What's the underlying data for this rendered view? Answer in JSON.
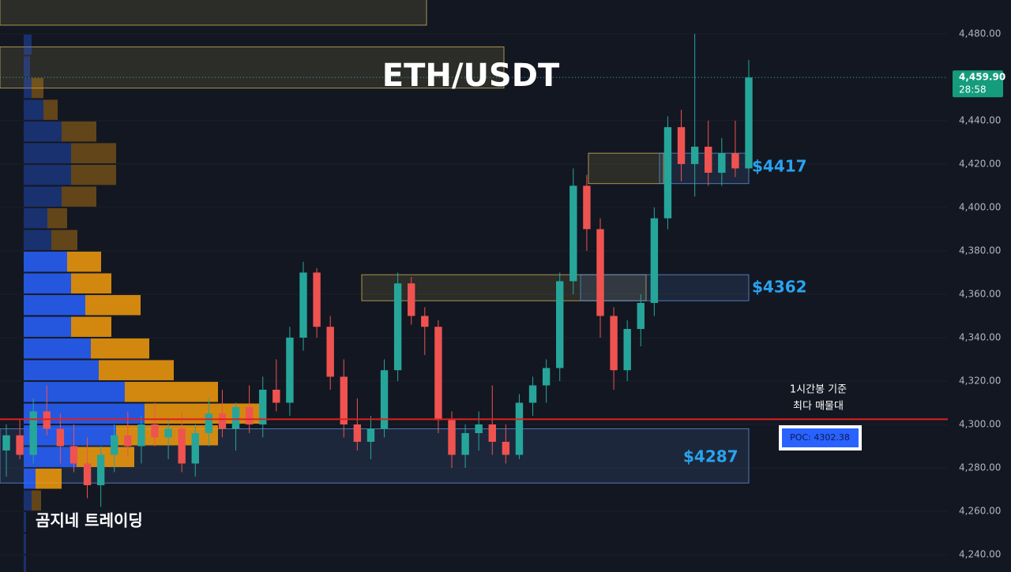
{
  "chart_data": {
    "type": "candlestick",
    "title": "ETH/USDT",
    "watermark": "곰지네 트레이딩",
    "ylim": [
      4232,
      4495.6
    ],
    "yticks": [
      {
        "value": 4240,
        "label": "4,240.00"
      },
      {
        "value": 4260,
        "label": "4,260.00"
      },
      {
        "value": 4280,
        "label": "4,280.00"
      },
      {
        "value": 4300,
        "label": "4,300.00"
      },
      {
        "value": 4320,
        "label": "4,320.00"
      },
      {
        "value": 4340,
        "label": "4,340.00"
      },
      {
        "value": 4360,
        "label": "4,360.00"
      },
      {
        "value": 4380,
        "label": "4,380.00"
      },
      {
        "value": 4400,
        "label": "4,400.00"
      },
      {
        "value": 4420,
        "label": "4,420.00"
      },
      {
        "value": 4440,
        "label": "4,440.00"
      },
      {
        "value": 4460,
        "label": "4,460.00"
      },
      {
        "value": 4480,
        "label": "4,480.00"
      }
    ],
    "grid": true,
    "up_color": "#26a69a",
    "down_color": "#ef5350",
    "open": [
      4288,
      4295,
      4286,
      4306,
      4298,
      4290,
      4282,
      4272,
      4286,
      4295,
      4290,
      4300,
      4294,
      4298,
      4282,
      4296,
      4305,
      4298,
      4308,
      4300,
      4316,
      4310,
      4340,
      4370,
      4345,
      4322,
      4300,
      4292,
      4298,
      4325,
      4365,
      4350,
      4345,
      4302,
      4286,
      4296,
      4300,
      4292,
      4286,
      4310,
      4318,
      4326,
      4366,
      4410,
      4390,
      4350,
      4325,
      4344,
      4356,
      4395,
      4437,
      4420,
      4428,
      4416,
      4425,
      4418
    ],
    "high": [
      4300,
      4302,
      4312,
      4318,
      4305,
      4300,
      4294,
      4290,
      4300,
      4306,
      4304,
      4310,
      4302,
      4306,
      4300,
      4312,
      4316,
      4310,
      4318,
      4322,
      4330,
      4345,
      4375,
      4372,
      4350,
      4330,
      4312,
      4304,
      4330,
      4370,
      4368,
      4354,
      4348,
      4306,
      4300,
      4306,
      4318,
      4300,
      4314,
      4322,
      4330,
      4370,
      4418,
      4415,
      4395,
      4354,
      4348,
      4360,
      4400,
      4442,
      4445,
      4480,
      4440,
      4432,
      4440,
      4468
    ],
    "low": [
      4276,
      4284,
      4282,
      4295,
      4282,
      4278,
      4266,
      4262,
      4278,
      4285,
      4282,
      4290,
      4284,
      4278,
      4276,
      4290,
      4294,
      4288,
      4296,
      4294,
      4306,
      4304,
      4334,
      4340,
      4316,
      4294,
      4288,
      4284,
      4294,
      4320,
      4346,
      4332,
      4296,
      4280,
      4280,
      4288,
      4286,
      4282,
      4284,
      4304,
      4310,
      4320,
      4360,
      4380,
      4340,
      4316,
      4320,
      4336,
      4350,
      4390,
      4412,
      4405,
      4410,
      4410,
      4414,
      4416
    ],
    "close": [
      4295,
      4286,
      4306,
      4298,
      4290,
      4282,
      4272,
      4286,
      4295,
      4290,
      4300,
      4294,
      4298,
      4282,
      4296,
      4305,
      4298,
      4308,
      4300,
      4316,
      4310,
      4340,
      4370,
      4345,
      4322,
      4300,
      4292,
      4298,
      4325,
      4365,
      4350,
      4345,
      4302,
      4286,
      4296,
      4300,
      4292,
      4286,
      4310,
      4318,
      4326,
      4366,
      4410,
      4390,
      4350,
      4325,
      4344,
      4356,
      4395,
      4437,
      4420,
      4428,
      4416,
      4425,
      4418,
      4459.9
    ],
    "last_price": {
      "value": 4459.9,
      "label": "4,459.90"
    },
    "countdown": "28:58",
    "volume_profile": {
      "bins": [
        4480,
        4470,
        4460,
        4450,
        4440,
        4430,
        4420,
        4410,
        4400,
        4390,
        4380,
        4370,
        4360,
        4350,
        4340,
        4330,
        4320,
        4310,
        4300,
        4290,
        4280,
        4270,
        4260,
        4250,
        4240,
        4230
      ],
      "buy": [
        10,
        8,
        10,
        25,
        48,
        60,
        60,
        48,
        30,
        35,
        55,
        60,
        78,
        60,
        85,
        95,
        128,
        153,
        117,
        67,
        15,
        10,
        3,
        3,
        3
      ],
      "sell": [
        0,
        0,
        15,
        18,
        44,
        57,
        57,
        44,
        25,
        33,
        43,
        51,
        70,
        51,
        74,
        95,
        118,
        154,
        129,
        73,
        33,
        12,
        0,
        0,
        0
      ],
      "buy_color": "#2962ff",
      "sell_color": "#f59c0a",
      "value_area": [
        4270,
        4380
      ]
    },
    "zones": [
      {
        "top": 4496,
        "bottom": 4484,
        "color": "#c9b458"
      },
      {
        "top": 4474,
        "bottom": 4455,
        "color": "#c9b458"
      },
      {
        "top": 4425,
        "bottom": 4411,
        "color": "#c9b458"
      },
      {
        "top": 4425,
        "bottom": 4411,
        "color": "#5b8fd6",
        "label": "$4417"
      },
      {
        "top": 4369,
        "bottom": 4357,
        "color": "#c9b458"
      },
      {
        "top": 4369,
        "bottom": 4357,
        "color": "#5b8fd6",
        "label": "$4362"
      },
      {
        "top": 4298,
        "bottom": 4273,
        "color": "#5b8fd6",
        "label": "$4287"
      }
    ],
    "poc": {
      "value": 4302.38,
      "label": "POC: 4302.38",
      "color": "#e02020"
    },
    "annotation": [
      "1시간봉 기준",
      "최다 매물대"
    ]
  }
}
